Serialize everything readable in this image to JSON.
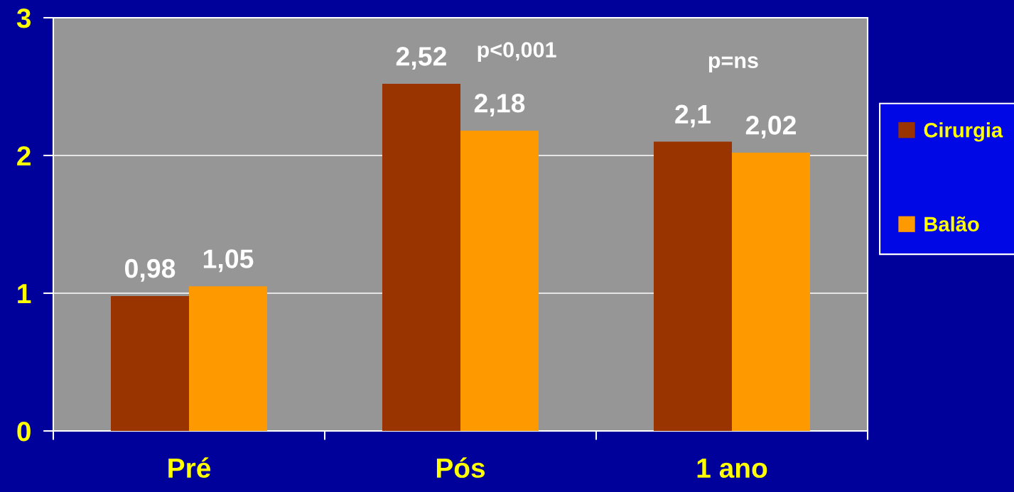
{
  "chart_data": {
    "type": "bar",
    "categories": [
      "Pré",
      "Pós",
      "1 ano"
    ],
    "series": [
      {
        "name": "Cirurgia",
        "color": "#993300",
        "values": [
          0.98,
          2.52,
          2.1
        ],
        "value_labels": [
          "0,98",
          "2,52",
          "2,1"
        ]
      },
      {
        "name": "Balão",
        "color": "#ff9900",
        "values": [
          1.05,
          2.18,
          2.02
        ],
        "value_labels": [
          "1,05",
          "2,18",
          "2,02"
        ]
      }
    ],
    "ylim": [
      0,
      3
    ],
    "yticks": [
      0,
      1,
      2,
      3
    ],
    "grid": "y",
    "legend": "right",
    "annotations": [
      "p<0,001",
      "p=ns"
    ]
  }
}
